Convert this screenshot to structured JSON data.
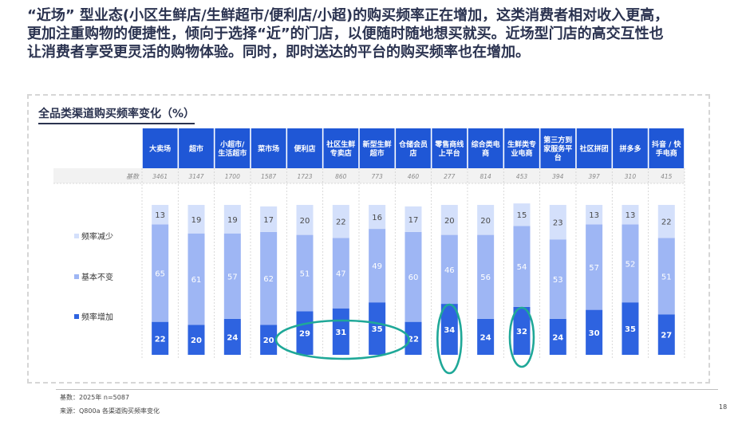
{
  "headline_lines": [
    "“近场” 型业态(小区生鲜店/生鲜超市/便利店/小超)的购买频率正在增加，这类消费者相对收入更高，",
    "更加注重购物的便捷性，倾向于选择“近”的门店，以便随时随地想买就买。近场型门店的高交互性也",
    "让消费者享受更灵活的购物体验。同时，即时送达的平台的购买频率也在增加。"
  ],
  "chart_title": "全品类渠道购买频率变化（%）",
  "footnote_base": "基数：2025年 n=5087",
  "footnote_source": "来源：Q800a 各渠道购买频率变化",
  "page_number": "18",
  "colors": {
    "header_bg": "#1f57d6",
    "increase": "#2e63e0",
    "unchanged": "#9eb6f4",
    "decrease": "#d4e0fb",
    "highlight": "#1fa898"
  },
  "chart_data": {
    "type": "bar",
    "stacked": true,
    "percent": true,
    "base_row_label": "基数",
    "categories": [
      "大卖场",
      "超市",
      "小超市/生活超市",
      "菜市场",
      "便利店",
      "社区生鲜专卖店",
      "新型生鲜超市",
      "仓储会员店",
      "零售商线上平台",
      "综合类电商",
      "生鲜类专业电商",
      "第三方到家服务平台",
      "社区拼团",
      "拼多多",
      "抖音 / 快手电商"
    ],
    "category_lines": [
      [
        "大卖场"
      ],
      [
        "超市"
      ],
      [
        "小超市/",
        "生活超市"
      ],
      [
        "菜市场"
      ],
      [
        "便利店"
      ],
      [
        "社区生鲜",
        "专卖店"
      ],
      [
        "新型生鲜",
        "超市"
      ],
      [
        "仓储会员",
        "店"
      ],
      [
        "零售商线",
        "上平台"
      ],
      [
        "综合类电",
        "商"
      ],
      [
        "生鲜类专",
        "业电商"
      ],
      [
        "第三方到",
        "家服务平",
        "台"
      ],
      [
        "社区拼团"
      ],
      [
        "拼多多"
      ],
      [
        "抖音 / 快",
        "手电商"
      ]
    ],
    "bases": [
      "3461",
      "3147",
      "1700",
      "1587",
      "1723",
      "860",
      "773",
      "460",
      "277",
      "814",
      "453",
      "394",
      "397",
      "310",
      "415"
    ],
    "series": [
      {
        "name": "频率增加",
        "values": [
          22,
          20,
          24,
          20,
          29,
          31,
          35,
          22,
          34,
          24,
          32,
          24,
          30,
          35,
          27
        ]
      },
      {
        "name": "基本不变",
        "values": [
          65,
          61,
          57,
          62,
          51,
          47,
          49,
          60,
          46,
          56,
          54,
          53,
          57,
          52,
          51
        ]
      },
      {
        "name": "频率减少",
        "values": [
          13,
          19,
          19,
          17,
          20,
          22,
          16,
          17,
          20,
          20,
          15,
          23,
          13,
          13,
          22
        ]
      }
    ],
    "legend_order": [
      "频率减少",
      "基本不变",
      "频率增加"
    ],
    "legend_position": "left",
    "highlighted": [
      "便利店",
      "社区生鲜专卖店",
      "新型生鲜超市",
      "零售商线上平台",
      "生鲜类专业电商"
    ]
  }
}
